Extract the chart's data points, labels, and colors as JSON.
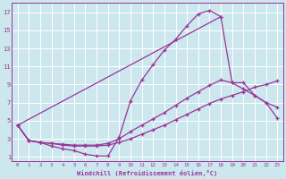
{
  "background_color": "#cce8ee",
  "grid_color": "#ffffff",
  "line_color": "#993399",
  "xlabel": "Windchill (Refroidissement éolien,°C)",
  "xlim": [
    -0.5,
    23.5
  ],
  "ylim": [
    0.5,
    18
  ],
  "xticks": [
    0,
    1,
    2,
    3,
    4,
    5,
    6,
    7,
    8,
    9,
    10,
    11,
    12,
    13,
    14,
    15,
    16,
    17,
    18,
    19,
    20,
    21,
    22,
    23
  ],
  "yticks": [
    1,
    3,
    5,
    7,
    9,
    11,
    13,
    15,
    17
  ],
  "curve1_x": [
    0,
    1,
    2,
    3,
    4,
    5,
    6,
    7,
    8,
    9,
    10,
    11,
    12,
    13,
    14,
    15,
    16,
    17,
    18
  ],
  "curve1_y": [
    4.5,
    2.8,
    2.6,
    2.2,
    1.9,
    1.7,
    1.3,
    1.1,
    1.1,
    3.2,
    7.2,
    9.5,
    11.2,
    12.8,
    14.0,
    15.5,
    16.8,
    17.2,
    16.5
  ],
  "curve2_x": [
    0,
    1,
    2,
    3,
    4,
    5,
    6,
    7,
    8,
    9,
    10,
    11,
    12,
    13,
    14,
    15,
    16,
    17,
    18,
    19,
    20,
    21,
    22,
    23
  ],
  "curve2_y": [
    4.5,
    2.8,
    2.6,
    2.5,
    2.4,
    2.3,
    2.3,
    2.3,
    2.5,
    3.0,
    3.8,
    4.5,
    5.2,
    5.9,
    6.7,
    7.5,
    8.2,
    8.9,
    9.5,
    9.2,
    8.5,
    7.8,
    7.0,
    6.5
  ],
  "curve3_x": [
    0,
    1,
    2,
    3,
    4,
    5,
    6,
    7,
    8,
    9,
    10,
    11,
    12,
    13,
    14,
    15,
    16,
    17,
    18,
    19,
    20,
    21,
    22,
    23
  ],
  "curve3_y": [
    4.5,
    2.8,
    2.6,
    2.5,
    2.3,
    2.2,
    2.2,
    2.2,
    2.3,
    2.6,
    3.0,
    3.5,
    4.0,
    4.5,
    5.1,
    5.7,
    6.3,
    6.9,
    7.4,
    7.8,
    8.2,
    8.7,
    9.0,
    9.4
  ],
  "curve4_x": [
    0,
    18,
    19,
    20,
    21,
    22,
    23
  ],
  "curve4_y": [
    4.5,
    16.5,
    9.2,
    9.2,
    7.8,
    7.0,
    5.3
  ]
}
